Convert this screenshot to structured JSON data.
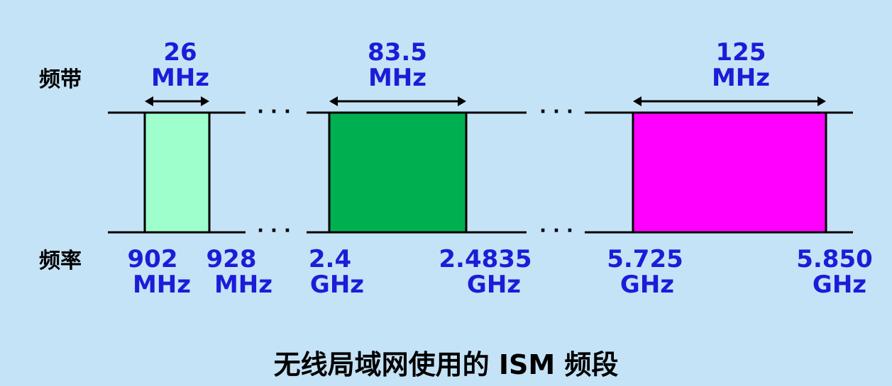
{
  "labels": {
    "bandwidth": "频带",
    "frequency": "频率"
  },
  "bands": [
    {
      "width_value": "26",
      "width_unit": "MHz",
      "start_value": "902",
      "start_unit": "MHz",
      "end_value": "928",
      "end_unit": "MHz",
      "color": "#9effcc"
    },
    {
      "width_value": "83.5",
      "width_unit": "MHz",
      "start_value": "2.4",
      "start_unit": "GHz",
      "end_value": "2.4835",
      "end_unit": "GHz",
      "color": "#00b050"
    },
    {
      "width_value": "125",
      "width_unit": "MHz",
      "start_value": "5.725",
      "start_unit": "GHz",
      "end_value": "5.850",
      "end_unit": "GHz",
      "color": "#ff00ff"
    }
  ],
  "ellipsis": "· · ·",
  "caption": "无线局域网使用的 ISM 频段",
  "colors": {
    "text_blue": "#1c1cd8",
    "background": "#c5e3f6"
  }
}
